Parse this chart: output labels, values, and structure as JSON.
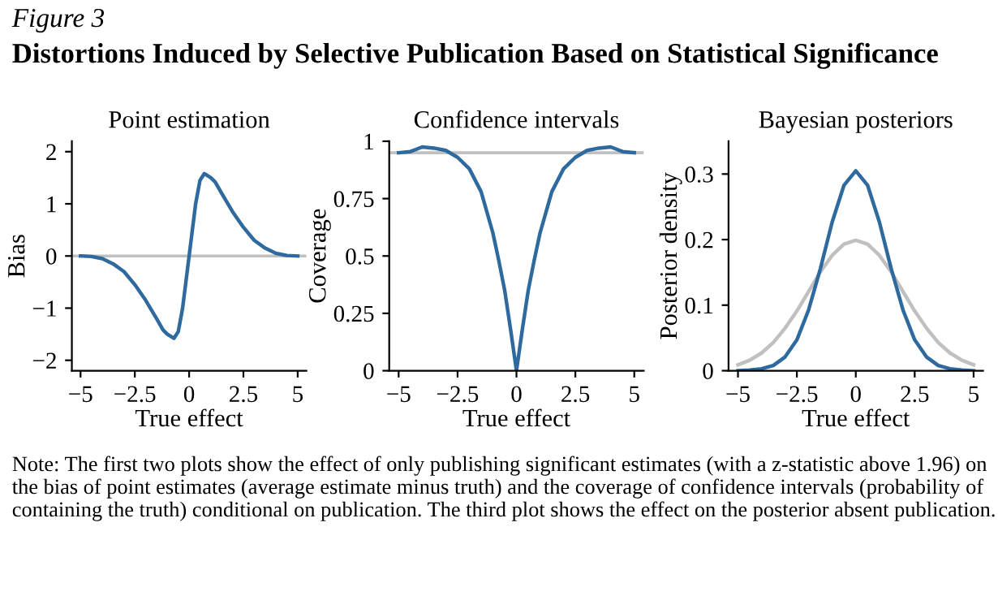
{
  "chart_data": [
    {
      "type": "line",
      "title": "Point estimation",
      "xlabel": "True effect",
      "ylabel": "Bias",
      "annotations": [
        "Figure 3",
        "Distortions Induced by Selective Publication Based on Statistical Significance",
        "Note: The first two plots show the effect of only publishing significant estimates (with a z-statistic above 1.96) on the bias of point estimates (average estimate minus truth) and the coverage of confidence intervals (probability of containing the truth) conditional on publication. The third plot shows the effect on the posterior absent publication."
      ],
      "x": [
        -5,
        -4.5,
        -4,
        -3.5,
        -3,
        -2.5,
        -2,
        -1.5,
        -1.2,
        -1,
        -0.7,
        -0.5,
        -0.3,
        0,
        0.3,
        0.5,
        0.7,
        1,
        1.2,
        1.5,
        2,
        2.5,
        3,
        3.5,
        4,
        4.5,
        5
      ],
      "series": [
        {
          "color": "#2e6a9e",
          "values": [
            0,
            -0.01,
            -0.05,
            -0.15,
            -0.3,
            -0.55,
            -0.85,
            -1.2,
            -1.42,
            -1.5,
            -1.58,
            -1.45,
            -1.0,
            0,
            1.0,
            1.45,
            1.58,
            1.5,
            1.42,
            1.2,
            0.85,
            0.55,
            0.3,
            0.15,
            0.05,
            0.01,
            0
          ]
        }
      ],
      "ref_lines": [
        {
          "axis": "y",
          "value": 0,
          "color": "#c0c0c0"
        }
      ],
      "xlim": [
        -5.4,
        5.4
      ],
      "ylim": [
        -2.2,
        2.2
      ],
      "xticks": [
        -5,
        -2.5,
        0,
        2.5,
        5
      ],
      "yticks": [
        -2,
        -1,
        0,
        1,
        2
      ],
      "grid": false,
      "legend": false
    },
    {
      "type": "line",
      "title": "Confidence intervals",
      "xlabel": "True effect",
      "ylabel": "Coverage",
      "x": [
        -5,
        -4.5,
        -4,
        -3.5,
        -3,
        -2.5,
        -2,
        -1.5,
        -1,
        -0.75,
        -0.5,
        -0.25,
        0,
        0.25,
        0.5,
        0.75,
        1,
        1.5,
        2,
        2.5,
        3,
        3.5,
        4,
        4.5,
        5
      ],
      "series": [
        {
          "color": "#2e6a9e",
          "values": [
            0.95,
            0.955,
            0.975,
            0.97,
            0.96,
            0.93,
            0.88,
            0.78,
            0.6,
            0.48,
            0.35,
            0.18,
            0,
            0.18,
            0.35,
            0.48,
            0.6,
            0.78,
            0.88,
            0.93,
            0.96,
            0.97,
            0.975,
            0.955,
            0.95
          ]
        }
      ],
      "ref_lines": [
        {
          "axis": "y",
          "value": 0.95,
          "color": "#c0c0c0"
        }
      ],
      "xlim": [
        -5.4,
        5.4
      ],
      "ylim": [
        0,
        1
      ],
      "xticks": [
        -5,
        -2.5,
        0,
        2.5,
        5
      ],
      "yticks": [
        0,
        0.25,
        0.5,
        0.75,
        1
      ],
      "grid": false,
      "legend": false
    },
    {
      "type": "line",
      "title": "Bayesian posteriors",
      "xlabel": "True effect",
      "ylabel": "Posterior density",
      "x": [
        -5,
        -4.5,
        -4,
        -3.5,
        -3,
        -2.5,
        -2,
        -1.5,
        -1,
        -0.5,
        0,
        0.5,
        1,
        1.5,
        2,
        2.5,
        3,
        3.5,
        4,
        4.5,
        5
      ],
      "series": [
        {
          "color": "#c0c0c0",
          "values": [
            0.009,
            0.016,
            0.027,
            0.043,
            0.065,
            0.091,
            0.121,
            0.151,
            0.176,
            0.193,
            0.199,
            0.193,
            0.176,
            0.151,
            0.121,
            0.091,
            0.065,
            0.043,
            0.027,
            0.016,
            0.009
          ]
        },
        {
          "color": "#2e6a9e",
          "values": [
            0,
            0.001,
            0.003,
            0.008,
            0.021,
            0.047,
            0.093,
            0.156,
            0.227,
            0.283,
            0.305,
            0.283,
            0.227,
            0.156,
            0.093,
            0.047,
            0.021,
            0.008,
            0.003,
            0.001,
            0
          ]
        }
      ],
      "xlim": [
        -5.4,
        5.4
      ],
      "ylim": [
        0,
        0.35
      ],
      "xticks": [
        -5,
        -2.5,
        0,
        2.5,
        5
      ],
      "yticks": [
        0,
        0.1,
        0.2,
        0.3
      ],
      "grid": false,
      "legend": false
    }
  ]
}
